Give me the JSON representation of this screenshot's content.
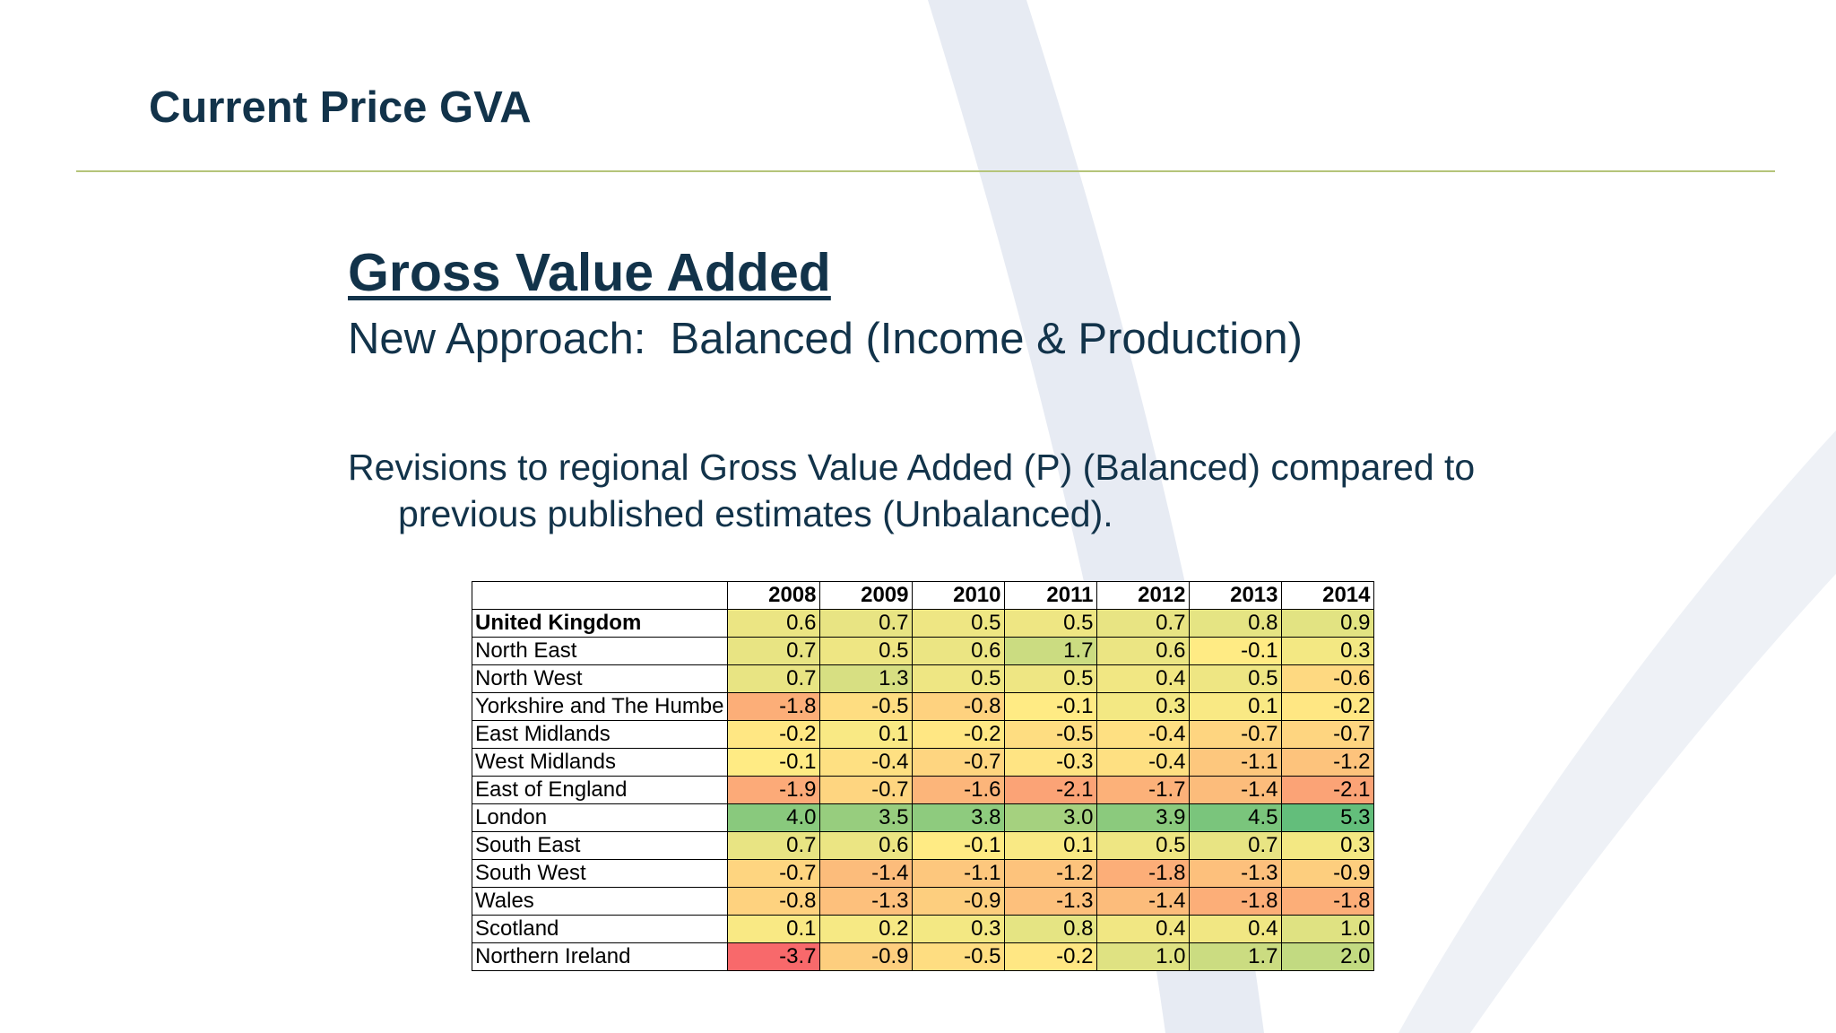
{
  "slide": {
    "title": "Current Price GVA"
  },
  "content": {
    "heading": "Gross Value Added",
    "subheading": "New Approach:  Balanced (Income & Production)",
    "description": "Revisions to regional Gross Value Added (P) (Balanced) compared to previous published estimates (Unbalanced)."
  },
  "colors": {
    "title_text": "#12334a",
    "divider": "#b5c47a",
    "watermark": "#e7ebf3",
    "scale_low": "#f8696b",
    "scale_mid": "#ffeb84",
    "scale_high": "#63be7b"
  },
  "table": {
    "years": [
      "2008",
      "2009",
      "2010",
      "2011",
      "2012",
      "2013",
      "2014"
    ],
    "rows": [
      {
        "region": "United Kingdom",
        "bold": true,
        "values": [
          0.6,
          0.7,
          0.5,
          0.5,
          0.7,
          0.8,
          0.9
        ]
      },
      {
        "region": "North East",
        "bold": false,
        "values": [
          0.7,
          0.5,
          0.6,
          1.7,
          0.6,
          -0.1,
          0.3
        ]
      },
      {
        "region": "North West",
        "bold": false,
        "values": [
          0.7,
          1.3,
          0.5,
          0.5,
          0.4,
          0.5,
          -0.6
        ]
      },
      {
        "region": "Yorkshire and The Humbe",
        "bold": false,
        "values": [
          -1.8,
          -0.5,
          -0.8,
          -0.1,
          0.3,
          0.1,
          -0.2
        ]
      },
      {
        "region": "East Midlands",
        "bold": false,
        "values": [
          -0.2,
          0.1,
          -0.2,
          -0.5,
          -0.4,
          -0.7,
          -0.7
        ]
      },
      {
        "region": "West Midlands",
        "bold": false,
        "values": [
          -0.1,
          -0.4,
          -0.7,
          -0.3,
          -0.4,
          -1.1,
          -1.2
        ]
      },
      {
        "region": "East of England",
        "bold": false,
        "values": [
          -1.9,
          -0.7,
          -1.6,
          -2.1,
          -1.7,
          -1.4,
          -2.1
        ]
      },
      {
        "region": "London",
        "bold": false,
        "values": [
          4.0,
          3.5,
          3.8,
          3.0,
          3.9,
          4.5,
          5.3
        ]
      },
      {
        "region": "South East",
        "bold": false,
        "values": [
          0.7,
          0.6,
          -0.1,
          0.1,
          0.5,
          0.7,
          0.3
        ]
      },
      {
        "region": "South West",
        "bold": false,
        "values": [
          -0.7,
          -1.4,
          -1.1,
          -1.2,
          -1.8,
          -1.3,
          -0.9
        ]
      },
      {
        "region": "Wales",
        "bold": false,
        "values": [
          -0.8,
          -1.3,
          -0.9,
          -1.3,
          -1.4,
          -1.8,
          -1.8
        ]
      },
      {
        "region": "Scotland",
        "bold": false,
        "values": [
          0.1,
          0.2,
          0.3,
          0.8,
          0.4,
          0.4,
          1.0
        ]
      },
      {
        "region": "Northern Ireland",
        "bold": false,
        "values": [
          -3.7,
          -0.9,
          -0.5,
          -0.2,
          1.0,
          1.7,
          2.0
        ]
      }
    ]
  }
}
